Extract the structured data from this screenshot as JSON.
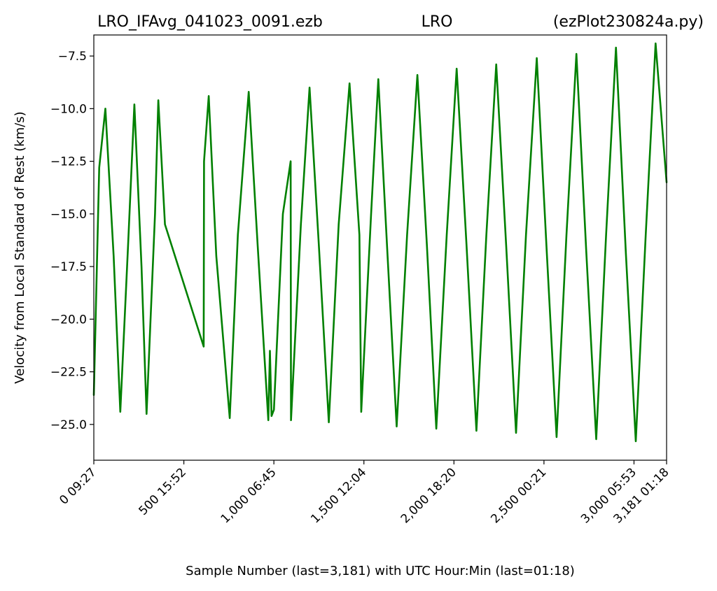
{
  "title": {
    "left": "LRO_IFAvg_041023_0091.ezb",
    "center": "LRO",
    "right": "(ezPlot230824a.py)"
  },
  "chart_data": {
    "type": "line",
    "xlabel": "Sample Number (last=3,181) with UTC Hour:Min (last=01:18)",
    "ylabel": "Velocity from Local Standard of Rest (km/s)",
    "xlim": [
      0,
      3181
    ],
    "ylim": [
      -26.7,
      -6.5
    ],
    "yticks": [
      {
        "value": -7.5,
        "label": "−7.5"
      },
      {
        "value": -10.0,
        "label": "−10.0"
      },
      {
        "value": -12.5,
        "label": "−12.5"
      },
      {
        "value": -15.0,
        "label": "−15.0"
      },
      {
        "value": -17.5,
        "label": "−17.5"
      },
      {
        "value": -20.0,
        "label": "−20.0"
      },
      {
        "value": -22.5,
        "label": "−22.5"
      },
      {
        "value": -25.0,
        "label": "−25.0"
      }
    ],
    "xticks": [
      {
        "value": 0,
        "label": "0  09:27"
      },
      {
        "value": 500,
        "label": "500  15:52"
      },
      {
        "value": 1000,
        "label": "1,000  06:45"
      },
      {
        "value": 1500,
        "label": "1,500  12:04"
      },
      {
        "value": 2000,
        "label": "2,000  18:20"
      },
      {
        "value": 2500,
        "label": "2,500  00:21"
      },
      {
        "value": 3000,
        "label": "3,000  05:53"
      },
      {
        "value": 3181,
        "label": "3,181  01:18"
      }
    ],
    "series": [
      {
        "color": "#008000",
        "points": [
          [
            0,
            -23.6
          ],
          [
            30,
            -12.8
          ],
          [
            64,
            -10.0
          ],
          [
            110,
            -17.0
          ],
          [
            147,
            -24.4
          ],
          [
            190,
            -16.5
          ],
          [
            225,
            -9.8
          ],
          [
            265,
            -17.5
          ],
          [
            293,
            -24.5
          ],
          [
            340,
            -15.0
          ],
          [
            358,
            -9.6
          ],
          [
            395,
            -15.5
          ],
          [
            610,
            -21.3
          ],
          [
            612,
            -12.5
          ],
          [
            638,
            -9.4
          ],
          [
            680,
            -17.0
          ],
          [
            755,
            -24.7
          ],
          [
            800,
            -16.0
          ],
          [
            860,
            -9.2
          ],
          [
            910,
            -16.5
          ],
          [
            969,
            -24.8
          ],
          [
            978,
            -21.5
          ],
          [
            987,
            -24.6
          ],
          [
            1000,
            -24.3
          ],
          [
            1050,
            -15.0
          ],
          [
            1093,
            -12.5
          ],
          [
            1095,
            -24.8
          ],
          [
            1150,
            -15.5
          ],
          [
            1198,
            -9.0
          ],
          [
            1250,
            -16.5
          ],
          [
            1305,
            -24.9
          ],
          [
            1360,
            -15.5
          ],
          [
            1420,
            -8.8
          ],
          [
            1475,
            -16.0
          ],
          [
            1485,
            -24.4
          ],
          [
            1540,
            -15.0
          ],
          [
            1580,
            -8.6
          ],
          [
            1630,
            -16.8
          ],
          [
            1682,
            -25.1
          ],
          [
            1740,
            -16.0
          ],
          [
            1797,
            -8.4
          ],
          [
            1850,
            -16.5
          ],
          [
            1902,
            -25.2
          ],
          [
            1960,
            -16.0
          ],
          [
            2015,
            -8.1
          ],
          [
            2070,
            -16.5
          ],
          [
            2125,
            -25.3
          ],
          [
            2180,
            -16.0
          ],
          [
            2235,
            -7.9
          ],
          [
            2290,
            -16.5
          ],
          [
            2345,
            -25.4
          ],
          [
            2400,
            -16.0
          ],
          [
            2460,
            -7.6
          ],
          [
            2515,
            -16.7
          ],
          [
            2570,
            -25.6
          ],
          [
            2625,
            -16.0
          ],
          [
            2680,
            -7.4
          ],
          [
            2735,
            -16.8
          ],
          [
            2790,
            -25.7
          ],
          [
            2845,
            -16.0
          ],
          [
            2900,
            -7.1
          ],
          [
            2955,
            -16.9
          ],
          [
            3010,
            -25.8
          ],
          [
            3065,
            -16.0
          ],
          [
            3120,
            -6.9
          ],
          [
            3181,
            -13.5
          ]
        ]
      }
    ]
  }
}
